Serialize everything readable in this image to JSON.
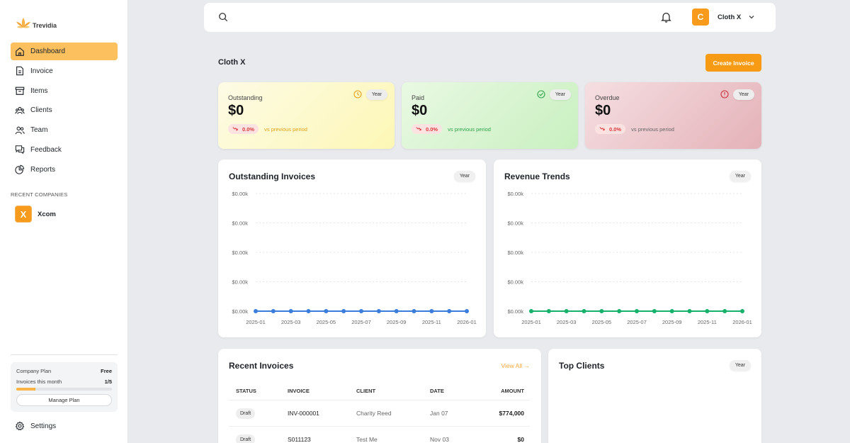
{
  "brand": {
    "name": "Trevidia"
  },
  "sidebar": {
    "items": [
      {
        "label": "Dashboard",
        "icon": "home-icon",
        "active": true
      },
      {
        "label": "Invoice",
        "icon": "invoice-icon"
      },
      {
        "label": "Items",
        "icon": "archive-icon"
      },
      {
        "label": "Clients",
        "icon": "clients-icon"
      },
      {
        "label": "Team",
        "icon": "team-icon"
      },
      {
        "label": "Feedback",
        "icon": "feedback-icon"
      },
      {
        "label": "Reports",
        "icon": "pie-chart-icon"
      }
    ],
    "recent_label": "RECENT COMPANIES",
    "recent_company": {
      "initial": "X",
      "name": "Xcom"
    },
    "plan": {
      "title": "Company Plan",
      "tier": "Free",
      "usage_label": "Invoices this month",
      "usage_value": "1/5",
      "usage_fraction": 0.2,
      "button": "Manage Plan"
    },
    "settings_label": "Settings"
  },
  "header": {
    "user_initial": "C",
    "user_name": "Cloth X"
  },
  "page": {
    "title": "Cloth X",
    "create_button": "Create Invoice"
  },
  "stats": [
    {
      "label": "Outstanding",
      "value": "$0",
      "delta": "0.0%",
      "compare": "vs previous period",
      "period": "Year"
    },
    {
      "label": "Paid",
      "value": "$0",
      "delta": "0.0%",
      "compare": "vs previous period",
      "period": "Year"
    },
    {
      "label": "Overdue",
      "value": "$0",
      "delta": "0.0%",
      "compare": "vs previous period",
      "period": "Year"
    }
  ],
  "charts": {
    "outstanding_title": "Outstanding Invoices",
    "revenue_title": "Revenue Trends",
    "period": "Year"
  },
  "chart_data": [
    {
      "type": "line",
      "title": "Outstanding Invoices",
      "x": [
        "2025-01",
        "2025-02",
        "2025-03",
        "2025-04",
        "2025-05",
        "2025-06",
        "2025-07",
        "2025-08",
        "2025-09",
        "2025-10",
        "2025-11",
        "2025-12",
        "2026-01"
      ],
      "x_tick_labels": [
        "2025-01",
        "2025-03",
        "2025-05",
        "2025-07",
        "2025-09",
        "2025-11",
        "2026-01"
      ],
      "y_tick_labels": [
        "$0.00k",
        "$0.00k",
        "$0.00k",
        "$0.00k",
        "$0.00k"
      ],
      "series": [
        {
          "values": [
            0,
            0,
            0,
            0,
            0,
            0,
            0,
            0,
            0,
            0,
            0,
            0,
            0
          ],
          "color": "#3b7ddd"
        }
      ],
      "grid": true
    },
    {
      "type": "line",
      "title": "Revenue Trends",
      "x": [
        "2025-01",
        "2025-02",
        "2025-03",
        "2025-04",
        "2025-05",
        "2025-06",
        "2025-07",
        "2025-08",
        "2025-09",
        "2025-10",
        "2025-11",
        "2025-12",
        "2026-01"
      ],
      "x_tick_labels": [
        "2025-01",
        "2025-03",
        "2025-05",
        "2025-07",
        "2025-09",
        "2025-11",
        "2026-01"
      ],
      "y_tick_labels": [
        "$0.00k",
        "$0.00k",
        "$0.00k",
        "$0.00k",
        "$0.00k"
      ],
      "series": [
        {
          "values": [
            0,
            0,
            0,
            0,
            0,
            0,
            0,
            0,
            0,
            0,
            0,
            0,
            0
          ],
          "color": "#16b26b"
        }
      ],
      "grid": true
    }
  ],
  "recent_invoices": {
    "title": "Recent Invoices",
    "view_all": "View All →",
    "columns": [
      "STATUS",
      "INVOICE",
      "CLIENT",
      "DATE",
      "AMOUNT"
    ],
    "rows": [
      {
        "status": "Draft",
        "invoice": "INV-000001",
        "client": "Charity Reed",
        "date": "Jan 07",
        "amount": "$774,000"
      },
      {
        "status": "Draft",
        "invoice": "S011123",
        "client": "Test Me",
        "date": "Nov 03",
        "amount": "$0"
      }
    ]
  },
  "top_clients": {
    "title": "Top Clients",
    "period": "Year"
  },
  "colors": {
    "accent": "#f79b14",
    "active_nav": "#fdc05e",
    "outstanding_line": "#3b7ddd",
    "revenue_line": "#16b26b"
  }
}
